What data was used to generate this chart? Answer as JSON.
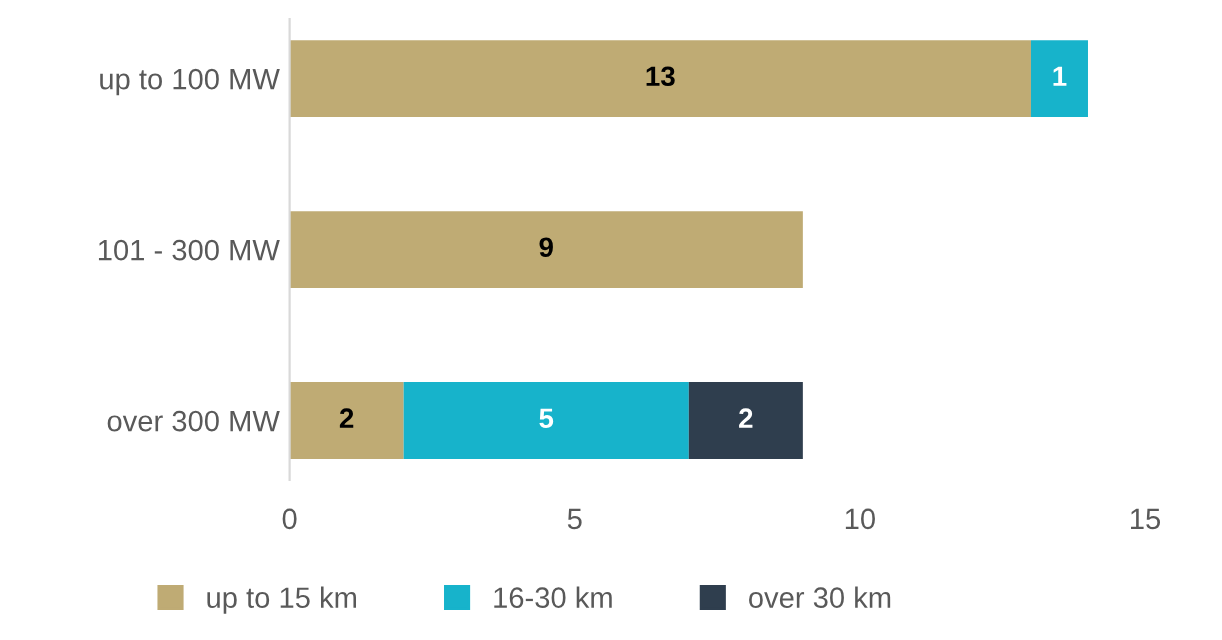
{
  "chart_data": {
    "type": "bar",
    "orientation": "horizontal",
    "stacked": true,
    "categories": [
      "up to 100 MW",
      "101 - 300 MW",
      "over 300 MW"
    ],
    "series": [
      {
        "name": "up to 15 km",
        "color": "#bfab74",
        "values": [
          13,
          9,
          2
        ]
      },
      {
        "name": "16-30 km",
        "color": "#17b3cb",
        "values": [
          1,
          null,
          5
        ]
      },
      {
        "name": "over 30 km",
        "color": "#2f3e4e",
        "values": [
          null,
          null,
          2
        ]
      }
    ],
    "xlim": [
      0,
      15
    ],
    "xticks": [
      0,
      5,
      10,
      15
    ],
    "data_labels": true,
    "legend": "bottom",
    "grid": false
  }
}
